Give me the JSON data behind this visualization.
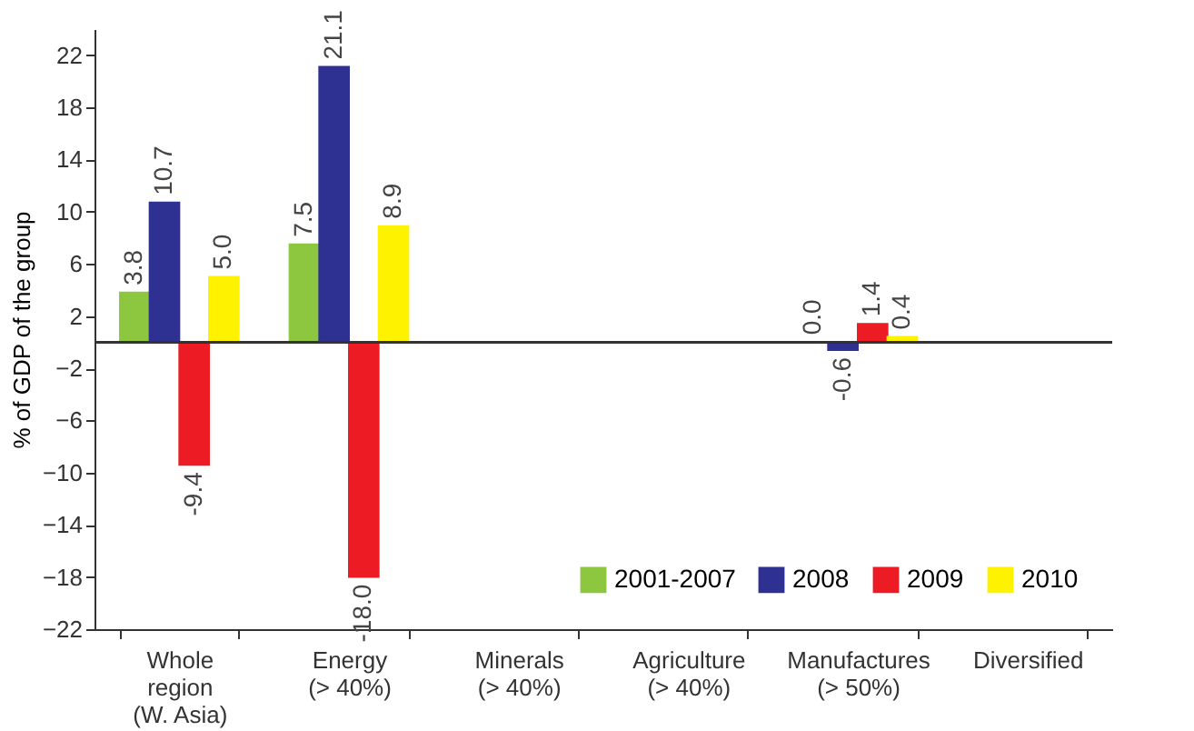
{
  "chart_data": {
    "type": "bar",
    "ylabel": "% of GDP of the group",
    "categories": [
      "Whole\nregion\n(W. Asia)",
      "Energy\n(> 40%)",
      "Minerals\n(> 40%)",
      "Agriculture\n(> 40%)",
      "Manufactures\n(> 50%)",
      "Diversified"
    ],
    "series": [
      {
        "name": "2001-2007",
        "color": "#8dc63f",
        "values": [
          3.8,
          7.5,
          null,
          null,
          0.0,
          null
        ],
        "value_labels": [
          "3.8",
          "7.5",
          null,
          null,
          "0.0",
          null
        ]
      },
      {
        "name": "2008",
        "color": "#2e3192",
        "values": [
          10.7,
          21.1,
          null,
          null,
          -0.6,
          null
        ],
        "value_labels": [
          "10.7",
          "21.1",
          null,
          null,
          "-0.6",
          null
        ]
      },
      {
        "name": "2009",
        "color": "#ed1c24",
        "values": [
          -9.4,
          -18.0,
          null,
          null,
          1.4,
          null
        ],
        "value_labels": [
          "-9.4",
          "-18.0",
          null,
          null,
          "1.4",
          null
        ]
      },
      {
        "name": "2010",
        "color": "#fff200",
        "values": [
          5.0,
          8.9,
          null,
          null,
          0.4,
          null
        ],
        "value_labels": [
          "5.0",
          "8.9",
          null,
          null,
          "0.4",
          null
        ]
      }
    ],
    "ylim": [
      -22,
      24
    ],
    "yticks": [
      -22,
      -18,
      -14,
      -10,
      -6,
      -2,
      2,
      6,
      10,
      14,
      18,
      22
    ],
    "grid": false,
    "legend": "bottom right"
  }
}
